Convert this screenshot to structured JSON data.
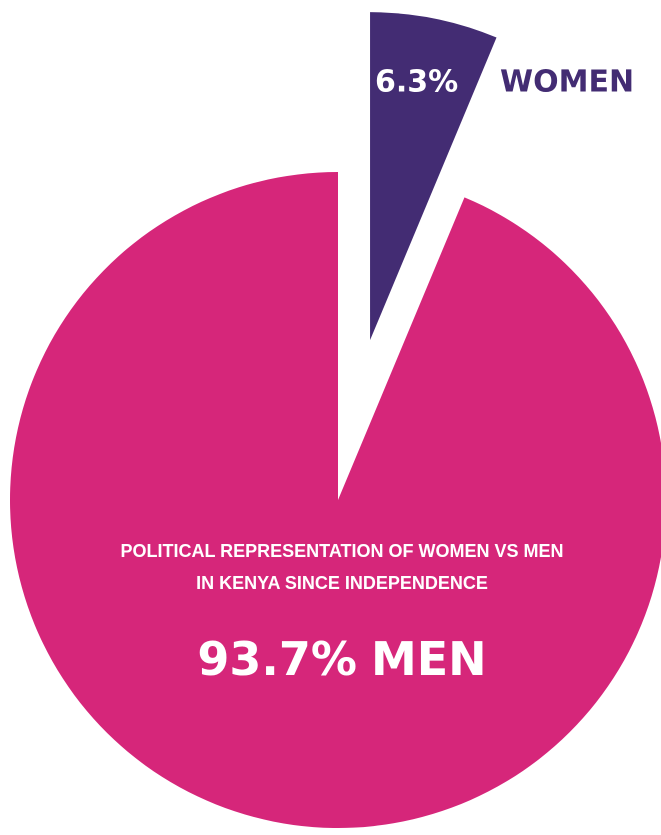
{
  "chart_data": {
    "type": "pie",
    "title": [
      "POLITICAL REPRESENTATION OF WOMEN VS MEN",
      "IN KENYA SINCE INDEPENDENCE"
    ],
    "categories": [
      "WOMEN",
      "MEN"
    ],
    "values": [
      6.3,
      93.7
    ],
    "value_labels": [
      "6.3%",
      "93.7%"
    ],
    "colors": [
      "#432c73",
      "#d6267a"
    ]
  }
}
